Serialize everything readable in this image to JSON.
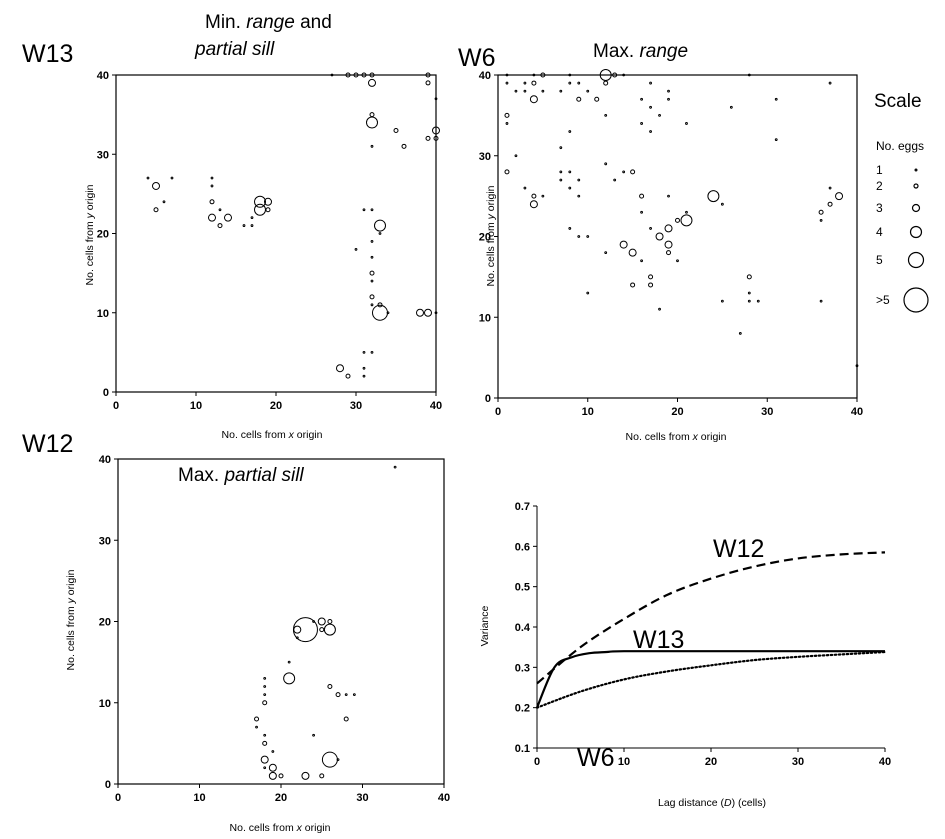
{
  "scale_legend": {
    "title": "Scale",
    "header": "No. eggs",
    "levels": [
      "1",
      "2",
      "3",
      "4",
      "5",
      ">5"
    ]
  },
  "chart_data": [
    {
      "type": "scatter",
      "label": "W13",
      "title": "Min. range and partial sill",
      "title_plain": "Min. ",
      "title_italic1": "range",
      "title_mid": " and",
      "title_italic2": "partial sill",
      "xlabel_pre": "No. cells from ",
      "xlabel_it": "x",
      "xlabel_post": " origin",
      "ylabel_pre": "No. cells from ",
      "ylabel_it": "y",
      "ylabel_post": " origin",
      "xlim": [
        0,
        40
      ],
      "ylim": [
        0,
        40
      ],
      "xticks": [
        "0",
        "10",
        "20",
        "30",
        "40"
      ],
      "yticks": [
        "0",
        "10",
        "20",
        "30",
        "40"
      ],
      "points": [
        {
          "x": 5,
          "y": 26,
          "n": 3
        },
        {
          "x": 5,
          "y": 23,
          "n": 2
        },
        {
          "x": 4,
          "y": 27,
          "n": 1
        },
        {
          "x": 6,
          "y": 24,
          "n": 1
        },
        {
          "x": 7,
          "y": 27,
          "n": 1
        },
        {
          "x": 12,
          "y": 27,
          "n": 1
        },
        {
          "x": 12,
          "y": 26,
          "n": 1
        },
        {
          "x": 12,
          "y": 24,
          "n": 2
        },
        {
          "x": 12,
          "y": 22,
          "n": 3
        },
        {
          "x": 13,
          "y": 21,
          "n": 2
        },
        {
          "x": 13,
          "y": 23,
          "n": 1
        },
        {
          "x": 14,
          "y": 22,
          "n": 3
        },
        {
          "x": 16,
          "y": 21,
          "n": 1
        },
        {
          "x": 17,
          "y": 22,
          "n": 1
        },
        {
          "x": 17,
          "y": 21,
          "n": 1
        },
        {
          "x": 18,
          "y": 24,
          "n": 4
        },
        {
          "x": 18,
          "y": 23,
          "n": 4
        },
        {
          "x": 19,
          "y": 24,
          "n": 3
        },
        {
          "x": 19,
          "y": 23,
          "n": 2
        },
        {
          "x": 27,
          "y": 40,
          "n": 1
        },
        {
          "x": 29,
          "y": 40,
          "n": 2
        },
        {
          "x": 30,
          "y": 40,
          "n": 2
        },
        {
          "x": 31,
          "y": 40,
          "n": 2
        },
        {
          "x": 32,
          "y": 40,
          "n": 2
        },
        {
          "x": 32,
          "y": 39,
          "n": 3
        },
        {
          "x": 39,
          "y": 40,
          "n": 2
        },
        {
          "x": 39,
          "y": 39,
          "n": 2
        },
        {
          "x": 40,
          "y": 37,
          "n": 1
        },
        {
          "x": 32,
          "y": 35,
          "n": 2
        },
        {
          "x": 32,
          "y": 34,
          "n": 4
        },
        {
          "x": 32,
          "y": 31,
          "n": 1
        },
        {
          "x": 35,
          "y": 33,
          "n": 2
        },
        {
          "x": 36,
          "y": 31,
          "n": 2
        },
        {
          "x": 39,
          "y": 32,
          "n": 2
        },
        {
          "x": 40,
          "y": 32,
          "n": 2
        },
        {
          "x": 40,
          "y": 33,
          "n": 3
        },
        {
          "x": 31,
          "y": 23,
          "n": 1
        },
        {
          "x": 32,
          "y": 23,
          "n": 1
        },
        {
          "x": 33,
          "y": 21,
          "n": 4
        },
        {
          "x": 33,
          "y": 20,
          "n": 1
        },
        {
          "x": 32,
          "y": 19,
          "n": 1
        },
        {
          "x": 30,
          "y": 18,
          "n": 1
        },
        {
          "x": 32,
          "y": 17,
          "n": 1
        },
        {
          "x": 32,
          "y": 15,
          "n": 2
        },
        {
          "x": 32,
          "y": 14,
          "n": 1
        },
        {
          "x": 32,
          "y": 12,
          "n": 2
        },
        {
          "x": 33,
          "y": 11,
          "n": 2
        },
        {
          "x": 32,
          "y": 11,
          "n": 1
        },
        {
          "x": 33,
          "y": 10,
          "n": 5
        },
        {
          "x": 34,
          "y": 10,
          "n": 1
        },
        {
          "x": 38,
          "y": 10,
          "n": 3
        },
        {
          "x": 39,
          "y": 10,
          "n": 3
        },
        {
          "x": 40,
          "y": 10,
          "n": 1
        },
        {
          "x": 31,
          "y": 5,
          "n": 1
        },
        {
          "x": 32,
          "y": 5,
          "n": 1
        },
        {
          "x": 28,
          "y": 3,
          "n": 3
        },
        {
          "x": 29,
          "y": 2,
          "n": 2
        },
        {
          "x": 31,
          "y": 3,
          "n": 1
        },
        {
          "x": 31,
          "y": 2,
          "n": 1
        }
      ]
    },
    {
      "type": "scatter",
      "label": "W6",
      "title": "Max. range",
      "title_plain": "Max. ",
      "title_italic1": "range",
      "xlabel_pre": "No. cells from ",
      "xlabel_it": "x",
      "xlabel_post": " origin",
      "ylabel_pre": "No. cells from ",
      "ylabel_it": "y",
      "ylabel_post": " origin",
      "xlim": [
        0,
        40
      ],
      "ylim": [
        0,
        40
      ],
      "xticks": [
        "0",
        "10",
        "20",
        "30",
        "40"
      ],
      "yticks": [
        "0",
        "10",
        "20",
        "30",
        "40"
      ],
      "points": [
        {
          "x": 1,
          "y": 40,
          "n": 1
        },
        {
          "x": 1,
          "y": 39,
          "n": 1
        },
        {
          "x": 2,
          "y": 38,
          "n": 1
        },
        {
          "x": 3,
          "y": 39,
          "n": 1
        },
        {
          "x": 3,
          "y": 38,
          "n": 1
        },
        {
          "x": 4,
          "y": 40,
          "n": 1
        },
        {
          "x": 4,
          "y": 39,
          "n": 2
        },
        {
          "x": 5,
          "y": 40,
          "n": 2
        },
        {
          "x": 4,
          "y": 37,
          "n": 3
        },
        {
          "x": 5,
          "y": 38,
          "n": 1
        },
        {
          "x": 1,
          "y": 35,
          "n": 2
        },
        {
          "x": 1,
          "y": 34,
          "n": 1
        },
        {
          "x": 7,
          "y": 38,
          "n": 1
        },
        {
          "x": 8,
          "y": 40,
          "n": 1
        },
        {
          "x": 8,
          "y": 39,
          "n": 1
        },
        {
          "x": 9,
          "y": 39,
          "n": 1
        },
        {
          "x": 9,
          "y": 37,
          "n": 2
        },
        {
          "x": 10,
          "y": 38,
          "n": 1
        },
        {
          "x": 11,
          "y": 37,
          "n": 2
        },
        {
          "x": 12,
          "y": 40,
          "n": 4
        },
        {
          "x": 13,
          "y": 40,
          "n": 2
        },
        {
          "x": 12,
          "y": 39,
          "n": 2
        },
        {
          "x": 14,
          "y": 40,
          "n": 1
        },
        {
          "x": 12,
          "y": 35,
          "n": 1
        },
        {
          "x": 16,
          "y": 37,
          "n": 1
        },
        {
          "x": 17,
          "y": 39,
          "n": 1
        },
        {
          "x": 19,
          "y": 38,
          "n": 1
        },
        {
          "x": 19,
          "y": 37,
          "n": 1
        },
        {
          "x": 17,
          "y": 36,
          "n": 1
        },
        {
          "x": 18,
          "y": 35,
          "n": 1
        },
        {
          "x": 16,
          "y": 34,
          "n": 1
        },
        {
          "x": 17,
          "y": 33,
          "n": 1
        },
        {
          "x": 8,
          "y": 33,
          "n": 1
        },
        {
          "x": 21,
          "y": 34,
          "n": 1
        },
        {
          "x": 28,
          "y": 40,
          "n": 1
        },
        {
          "x": 31,
          "y": 37,
          "n": 1
        },
        {
          "x": 37,
          "y": 39,
          "n": 1
        },
        {
          "x": 26,
          "y": 36,
          "n": 1
        },
        {
          "x": 1,
          "y": 28,
          "n": 2
        },
        {
          "x": 2,
          "y": 30,
          "n": 1
        },
        {
          "x": 3,
          "y": 26,
          "n": 1
        },
        {
          "x": 4,
          "y": 25,
          "n": 2
        },
        {
          "x": 4,
          "y": 24,
          "n": 3
        },
        {
          "x": 5,
          "y": 25,
          "n": 1
        },
        {
          "x": 7,
          "y": 28,
          "n": 1
        },
        {
          "x": 7,
          "y": 27,
          "n": 1
        },
        {
          "x": 8,
          "y": 28,
          "n": 1
        },
        {
          "x": 8,
          "y": 26,
          "n": 1
        },
        {
          "x": 9,
          "y": 25,
          "n": 1
        },
        {
          "x": 9,
          "y": 27,
          "n": 1
        },
        {
          "x": 7,
          "y": 31,
          "n": 1
        },
        {
          "x": 12,
          "y": 29,
          "n": 1
        },
        {
          "x": 13,
          "y": 27,
          "n": 1
        },
        {
          "x": 14,
          "y": 28,
          "n": 1
        },
        {
          "x": 15,
          "y": 28,
          "n": 2
        },
        {
          "x": 16,
          "y": 25,
          "n": 2
        },
        {
          "x": 16,
          "y": 23,
          "n": 1
        },
        {
          "x": 19,
          "y": 25,
          "n": 1
        },
        {
          "x": 24,
          "y": 25,
          "n": 4
        },
        {
          "x": 25,
          "y": 24,
          "n": 1
        },
        {
          "x": 14,
          "y": 19,
          "n": 3
        },
        {
          "x": 15,
          "y": 18,
          "n": 3
        },
        {
          "x": 16,
          "y": 17,
          "n": 1
        },
        {
          "x": 17,
          "y": 21,
          "n": 1
        },
        {
          "x": 18,
          "y": 20,
          "n": 3
        },
        {
          "x": 19,
          "y": 21,
          "n": 3
        },
        {
          "x": 19,
          "y": 19,
          "n": 3
        },
        {
          "x": 19,
          "y": 18,
          "n": 2
        },
        {
          "x": 20,
          "y": 22,
          "n": 2
        },
        {
          "x": 21,
          "y": 22,
          "n": 4
        },
        {
          "x": 20,
          "y": 17,
          "n": 1
        },
        {
          "x": 21,
          "y": 23,
          "n": 1
        },
        {
          "x": 17,
          "y": 15,
          "n": 2
        },
        {
          "x": 17,
          "y": 14,
          "n": 2
        },
        {
          "x": 15,
          "y": 14,
          "n": 2
        },
        {
          "x": 18,
          "y": 11,
          "n": 1
        },
        {
          "x": 12,
          "y": 18,
          "n": 1
        },
        {
          "x": 9,
          "y": 20,
          "n": 1
        },
        {
          "x": 10,
          "y": 20,
          "n": 1
        },
        {
          "x": 8,
          "y": 21,
          "n": 1
        },
        {
          "x": 10,
          "y": 13,
          "n": 1
        },
        {
          "x": 28,
          "y": 15,
          "n": 2
        },
        {
          "x": 28,
          "y": 13,
          "n": 1
        },
        {
          "x": 28,
          "y": 12,
          "n": 1
        },
        {
          "x": 29,
          "y": 12,
          "n": 1
        },
        {
          "x": 25,
          "y": 12,
          "n": 1
        },
        {
          "x": 27,
          "y": 8,
          "n": 1
        },
        {
          "x": 36,
          "y": 23,
          "n": 2
        },
        {
          "x": 36,
          "y": 22,
          "n": 1
        },
        {
          "x": 37,
          "y": 24,
          "n": 2
        },
        {
          "x": 38,
          "y": 25,
          "n": 3
        },
        {
          "x": 37,
          "y": 26,
          "n": 1
        },
        {
          "x": 36,
          "y": 12,
          "n": 1
        },
        {
          "x": 40,
          "y": 4,
          "n": 1
        },
        {
          "x": 31,
          "y": 32,
          "n": 1
        }
      ]
    },
    {
      "type": "scatter",
      "label": "W12",
      "title": "Max. partial sill",
      "title_plain": "Max. ",
      "title_italic1": "partial sill",
      "xlabel_pre": "No. cells from ",
      "xlabel_it": "x",
      "xlabel_post": " origin",
      "ylabel_pre": "No. cells from ",
      "ylabel_it": "y",
      "ylabel_post": " origin",
      "xlim": [
        0,
        40
      ],
      "ylim": [
        0,
        40
      ],
      "xticks": [
        "0",
        "10",
        "20",
        "30",
        "40"
      ],
      "yticks": [
        "0",
        "10",
        "20",
        "30",
        "40"
      ],
      "points": [
        {
          "x": 34,
          "y": 39,
          "n": 1
        },
        {
          "x": 23,
          "y": 19,
          "n": 6
        },
        {
          "x": 22,
          "y": 19,
          "n": 3
        },
        {
          "x": 22,
          "y": 18,
          "n": 1
        },
        {
          "x": 24,
          "y": 20,
          "n": 1
        },
        {
          "x": 25,
          "y": 20,
          "n": 3
        },
        {
          "x": 25,
          "y": 19,
          "n": 2
        },
        {
          "x": 26,
          "y": 20,
          "n": 2
        },
        {
          "x": 26,
          "y": 19,
          "n": 4
        },
        {
          "x": 21,
          "y": 13,
          "n": 4
        },
        {
          "x": 21,
          "y": 15,
          "n": 1
        },
        {
          "x": 18,
          "y": 13,
          "n": 1
        },
        {
          "x": 18,
          "y": 12,
          "n": 1
        },
        {
          "x": 18,
          "y": 11,
          "n": 1
        },
        {
          "x": 18,
          "y": 10,
          "n": 2
        },
        {
          "x": 17,
          "y": 8,
          "n": 2
        },
        {
          "x": 17,
          "y": 7,
          "n": 1
        },
        {
          "x": 18,
          "y": 6,
          "n": 1
        },
        {
          "x": 18,
          "y": 5,
          "n": 2
        },
        {
          "x": 19,
          "y": 4,
          "n": 1
        },
        {
          "x": 18,
          "y": 3,
          "n": 3
        },
        {
          "x": 18,
          "y": 2,
          "n": 1
        },
        {
          "x": 19,
          "y": 2,
          "n": 3
        },
        {
          "x": 19,
          "y": 1,
          "n": 3
        },
        {
          "x": 20,
          "y": 1,
          "n": 2
        },
        {
          "x": 23,
          "y": 1,
          "n": 3
        },
        {
          "x": 25,
          "y": 1,
          "n": 2
        },
        {
          "x": 26,
          "y": 3,
          "n": 5
        },
        {
          "x": 27,
          "y": 3,
          "n": 1
        },
        {
          "x": 26,
          "y": 12,
          "n": 2
        },
        {
          "x": 27,
          "y": 11,
          "n": 2
        },
        {
          "x": 28,
          "y": 11,
          "n": 1
        },
        {
          "x": 29,
          "y": 11,
          "n": 1
        },
        {
          "x": 28,
          "y": 8,
          "n": 2
        },
        {
          "x": 24,
          "y": 6,
          "n": 1
        }
      ]
    },
    {
      "type": "line",
      "ylabel": "Variance",
      "xlabel_pre": "Lag distance (",
      "xlabel_it": "D",
      "xlabel_post": ") (cells)",
      "xlim": [
        0,
        40
      ],
      "ylim": [
        0.1,
        0.7
      ],
      "xticks": [
        "0",
        "10",
        "20",
        "30",
        "40"
      ],
      "yticks": [
        "0.1",
        "0.2",
        "0.3",
        "0.4",
        "0.5",
        "0.6",
        "0.7"
      ],
      "series": [
        {
          "name": "W12",
          "style": "dashed",
          "x": [
            0,
            5,
            10,
            15,
            20,
            25,
            30,
            35,
            40
          ],
          "values": [
            0.26,
            0.35,
            0.42,
            0.48,
            0.52,
            0.55,
            0.57,
            0.58,
            0.585
          ]
        },
        {
          "name": "W13",
          "style": "solid",
          "x": [
            0,
            2,
            4,
            6,
            8,
            10,
            20,
            30,
            40
          ],
          "values": [
            0.2,
            0.3,
            0.325,
            0.335,
            0.338,
            0.34,
            0.34,
            0.34,
            0.34
          ]
        },
        {
          "name": "W6",
          "style": "dotted",
          "x": [
            0,
            5,
            10,
            15,
            20,
            25,
            30,
            35,
            40
          ],
          "values": [
            0.2,
            0.24,
            0.27,
            0.29,
            0.305,
            0.318,
            0.326,
            0.332,
            0.338
          ]
        }
      ]
    }
  ]
}
